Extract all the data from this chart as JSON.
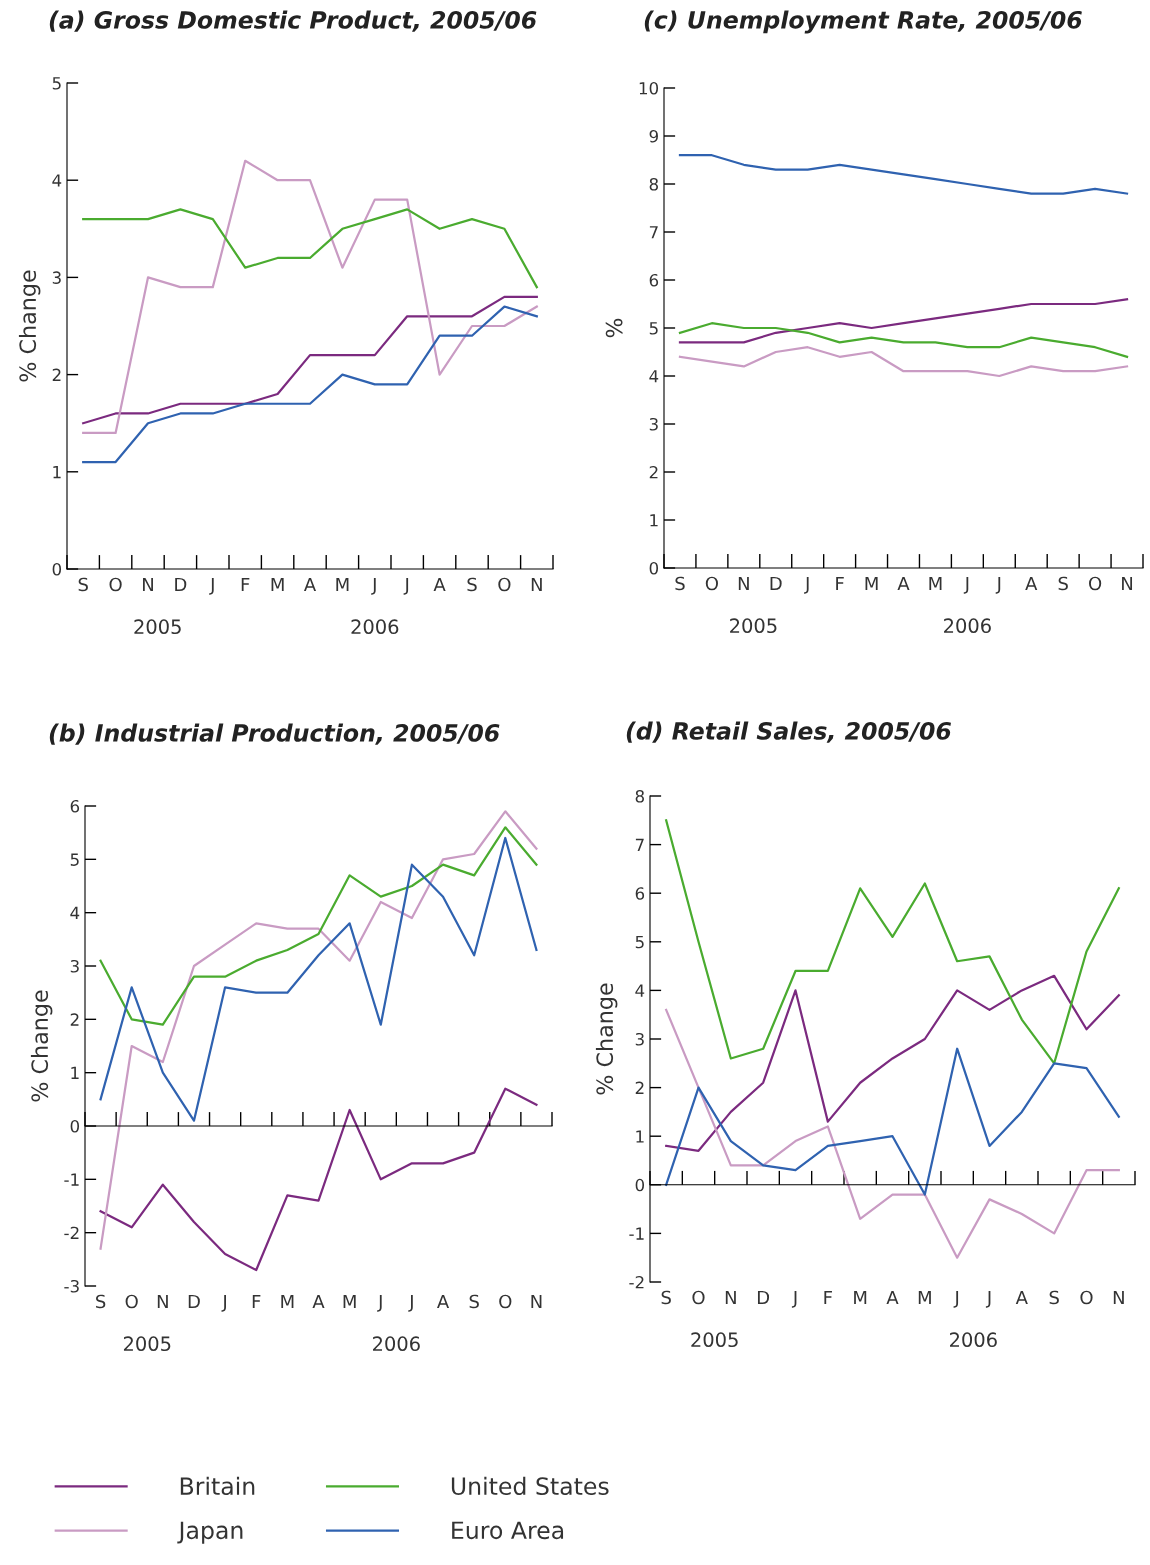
{
  "chart_data": [
    {
      "type": "line",
      "title": "(a) Gross Domestic Product, 2005/06",
      "ylabel": "% Change",
      "categories": [
        "S",
        "O",
        "N",
        "D",
        "J",
        "F",
        "M",
        "A",
        "M",
        "J",
        "J",
        "A",
        "S",
        "O",
        "N"
      ],
      "ylim": [
        0,
        5
      ],
      "yticks": [
        0,
        1,
        2,
        3,
        4,
        5
      ],
      "legend": "bottom",
      "annotations": [
        "2005",
        "2006"
      ],
      "series": [
        {
          "name": "Britain",
          "color": "#7b2a7f",
          "values": [
            1.5,
            1.6,
            1.6,
            1.7,
            1.7,
            1.7,
            1.8,
            2.2,
            2.2,
            2.2,
            2.6,
            2.6,
            2.6,
            2.8,
            2.8
          ]
        },
        {
          "name": "Japan",
          "color": "#c99bc3",
          "values": [
            1.4,
            1.4,
            3.0,
            2.9,
            2.9,
            4.2,
            4.0,
            4.0,
            3.1,
            3.8,
            3.8,
            2.0,
            2.5,
            2.5,
            2.7
          ]
        },
        {
          "name": "United States",
          "color": "#4aab2f",
          "values": [
            3.6,
            3.6,
            3.6,
            3.7,
            3.6,
            3.1,
            3.2,
            3.2,
            3.5,
            3.6,
            3.7,
            3.5,
            3.6,
            3.5,
            2.9
          ]
        },
        {
          "name": "Euro Area",
          "color": "#2f62b0",
          "values": [
            1.1,
            1.1,
            1.5,
            1.6,
            1.6,
            1.7,
            1.7,
            1.7,
            2.0,
            1.9,
            1.9,
            2.4,
            2.4,
            2.7,
            2.6
          ]
        }
      ]
    },
    {
      "type": "line",
      "title": "(c) Unemployment Rate, 2005/06",
      "ylabel": "%",
      "categories": [
        "S",
        "O",
        "N",
        "D",
        "J",
        "F",
        "M",
        "A",
        "M",
        "J",
        "J",
        "A",
        "S",
        "O",
        "N"
      ],
      "ylim": [
        0,
        10
      ],
      "yticks": [
        0,
        1,
        2,
        3,
        4,
        5,
        6,
        7,
        8,
        9,
        10
      ],
      "annotations": [
        "2005",
        "2006"
      ],
      "series": [
        {
          "color": "#7b2a7f",
          "values": [
            4.7,
            4.7,
            4.7,
            4.9,
            5.0,
            5.1,
            5.0,
            5.1,
            5.2,
            5.3,
            5.4,
            5.5,
            5.5,
            5.5,
            5.6
          ]
        },
        {
          "color": "#c99bc3",
          "values": [
            4.4,
            4.3,
            4.2,
            4.5,
            4.6,
            4.4,
            4.5,
            4.1,
            4.1,
            4.1,
            4.0,
            4.2,
            4.1,
            4.1,
            4.2
          ]
        },
        {
          "color": "#4aab2f",
          "values": [
            4.9,
            5.1,
            5.0,
            5.0,
            4.9,
            4.7,
            4.8,
            4.7,
            4.7,
            4.6,
            4.6,
            4.8,
            4.7,
            4.6,
            4.4
          ]
        },
        {
          "color": "#2f62b0",
          "values": [
            8.6,
            8.6,
            8.4,
            8.3,
            8.3,
            8.4,
            8.3,
            8.2,
            8.1,
            8.0,
            7.9,
            7.8,
            7.8,
            7.9,
            7.8
          ]
        }
      ]
    },
    {
      "type": "line",
      "title": "(b) Industrial Production, 2005/06",
      "ylabel": "% Change",
      "categories": [
        "S",
        "O",
        "N",
        "D",
        "J",
        "F",
        "M",
        "A",
        "M",
        "J",
        "J",
        "A",
        "S",
        "O",
        "N"
      ],
      "ylim": [
        -3,
        6
      ],
      "yticks": [
        -3,
        -2,
        -1,
        0,
        1,
        2,
        3,
        4,
        5,
        6
      ],
      "annotations": [
        "2005",
        "2006"
      ],
      "series": [
        {
          "color": "#7b2a7f",
          "values": [
            -1.6,
            -1.9,
            -1.1,
            -1.8,
            -2.4,
            -2.7,
            -1.3,
            -1.4,
            0.3,
            -1.0,
            -0.7,
            -0.7,
            -0.5,
            0.7,
            0.4
          ]
        },
        {
          "color": "#c99bc3",
          "values": [
            -2.3,
            1.5,
            1.2,
            3.0,
            3.4,
            3.8,
            3.7,
            3.7,
            3.1,
            4.2,
            3.9,
            5.0,
            5.1,
            5.9,
            5.2
          ]
        },
        {
          "color": "#4aab2f",
          "values": [
            3.1,
            2.0,
            1.9,
            2.8,
            2.8,
            3.1,
            3.3,
            3.6,
            4.7,
            4.3,
            4.5,
            4.9,
            4.7,
            5.6,
            4.9
          ]
        },
        {
          "color": "#2f62b0",
          "values": [
            0.5,
            2.6,
            1.0,
            0.1,
            2.6,
            2.5,
            2.5,
            3.2,
            3.8,
            1.9,
            4.9,
            4.3,
            3.2,
            5.4,
            3.3
          ]
        }
      ]
    },
    {
      "type": "line",
      "title": "(d) Retail Sales, 2005/06",
      "ylabel": "% Change",
      "categories": [
        "S",
        "O",
        "N",
        "D",
        "J",
        "F",
        "M",
        "A",
        "M",
        "J",
        "J",
        "A",
        "S",
        "O",
        "N"
      ],
      "ylim": [
        -2,
        8
      ],
      "yticks": [
        -2,
        -1,
        0,
        1,
        2,
        3,
        4,
        5,
        6,
        7,
        8
      ],
      "annotations": [
        "2005",
        "2006"
      ],
      "series": [
        {
          "color": "#7b2a7f",
          "values": [
            0.8,
            0.7,
            1.5,
            2.1,
            4.0,
            1.3,
            2.1,
            2.6,
            3.0,
            4.0,
            3.6,
            4.0,
            4.3,
            3.2,
            3.9
          ]
        },
        {
          "color": "#c99bc3",
          "values": [
            3.6,
            2.0,
            0.4,
            0.4,
            0.9,
            1.2,
            -0.7,
            -0.2,
            -0.2,
            -1.5,
            -0.3,
            -0.6,
            -1.0,
            0.3,
            0.3
          ]
        },
        {
          "color": "#4aab2f",
          "values": [
            7.5,
            5.0,
            2.6,
            2.8,
            4.4,
            4.4,
            6.1,
            5.1,
            6.2,
            4.6,
            4.7,
            3.4,
            2.5,
            4.8,
            6.1
          ]
        },
        {
          "color": "#2f62b0",
          "values": [
            0,
            2.0,
            0.9,
            0.4,
            0.3,
            0.8,
            0.9,
            1.0,
            -0.2,
            2.8,
            0.8,
            1.5,
            2.5,
            2.4,
            1.4
          ]
        }
      ]
    }
  ]
}
